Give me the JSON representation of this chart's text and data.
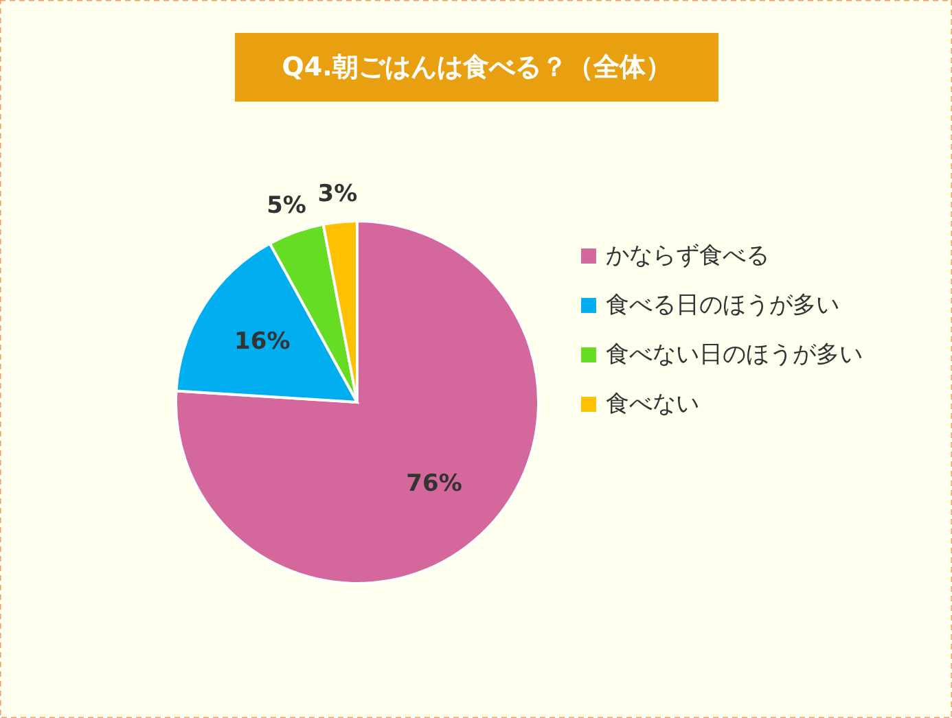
{
  "chart_data": {
    "type": "pie",
    "title": "Q4.朝ごはんは食べる？（全体）",
    "categories": [
      "かならず食べる",
      "食べる日のほうが多い",
      "食べない日のほうが多い",
      "食べない"
    ],
    "values": [
      76,
      16,
      5,
      3
    ],
    "colors": [
      "#d4679b",
      "#00aeef",
      "#66dd22",
      "#ffc000"
    ],
    "value_labels": [
      "76%",
      "16%",
      "5%",
      "3%"
    ],
    "legend": "right"
  }
}
